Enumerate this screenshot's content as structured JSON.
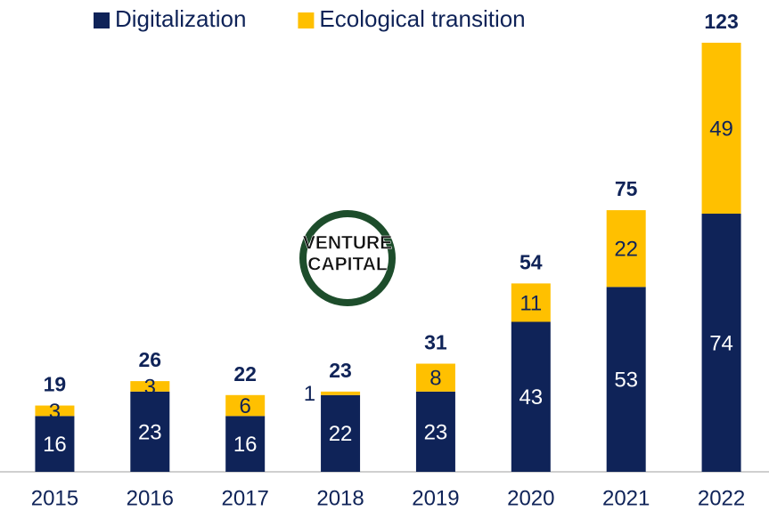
{
  "chart_data": {
    "type": "stacked_bar",
    "categories": [
      "2015",
      "2016",
      "2017",
      "2018",
      "2019",
      "2020",
      "2021",
      "2022"
    ],
    "series": [
      {
        "name": "Digitalization",
        "color": "#0f2358",
        "values": [
          16,
          23,
          16,
          22,
          23,
          43,
          53,
          74
        ]
      },
      {
        "name": "Ecological transition",
        "color": "#ffc000",
        "values": [
          3,
          3,
          6,
          1,
          8,
          11,
          22,
          49
        ]
      }
    ],
    "totals": [
      19,
      26,
      22,
      23,
      31,
      54,
      75,
      123
    ],
    "ylim": [
      0,
      123
    ],
    "legend": "top",
    "logo": [
      "VENTURE",
      "CAPITAL"
    ]
  }
}
